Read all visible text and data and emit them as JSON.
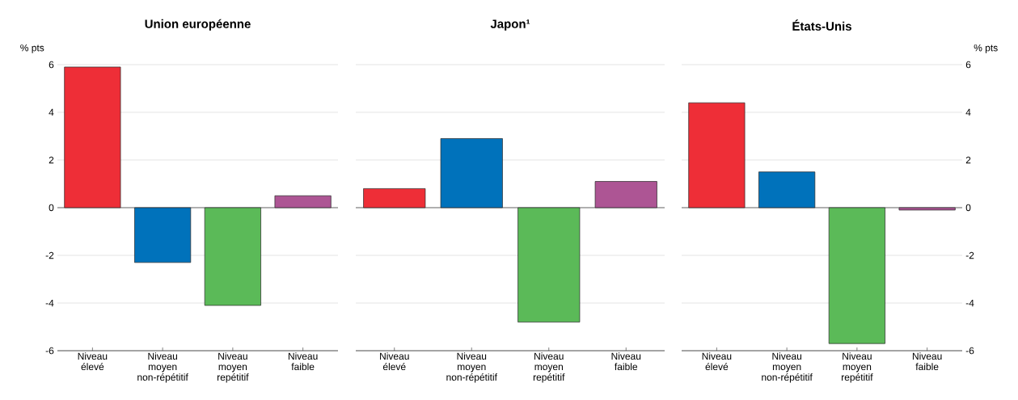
{
  "chart_data": [
    {
      "type": "bar",
      "title": "Union européenne",
      "ylabel": "% pts",
      "categories": [
        "Niveau élevé",
        "Niveau moyen non-répétitif",
        "Niveau moyen repétitif",
        "Niveau faible"
      ],
      "values": [
        5.9,
        -2.3,
        -4.1,
        0.5
      ],
      "colors": [
        "#ee2e37",
        "#0072bb",
        "#5bba58",
        "#ad5594"
      ],
      "ylim": [
        -6,
        6
      ],
      "yticks": [
        -6,
        -4,
        -2,
        0,
        2,
        4,
        6
      ],
      "grid": "y"
    },
    {
      "type": "bar",
      "title": "Japon¹",
      "categories": [
        "Niveau élevé",
        "Niveau moyen non-répétitif",
        "Niveau moyen repétitif",
        "Niveau faible"
      ],
      "values": [
        0.8,
        2.9,
        -4.8,
        1.1
      ],
      "colors": [
        "#ee2e37",
        "#0072bb",
        "#5bba58",
        "#ad5594"
      ],
      "ylim": [
        -6,
        6
      ],
      "yticks": [
        -6,
        -4,
        -2,
        0,
        2,
        4,
        6
      ],
      "grid": "y",
      "tick_labels": "x"
    },
    {
      "type": "bar",
      "title": "États-Unis",
      "y2label": "% pts",
      "categories": [
        "Niveau élevé",
        "Niveau moyen non-répétitif",
        "Niveau moyen repétitif",
        "Niveau faible"
      ],
      "series": [
        {
          "axis": "y2",
          "values": [
            4.4,
            1.5,
            -5.7,
            -0.1
          ],
          "colors": [
            "#ee2e37",
            "#0072bb",
            "#5bba58",
            "#ad5594"
          ]
        }
      ],
      "y2lim": [
        -6,
        6
      ],
      "y2ticks": [
        -6,
        -4,
        -2,
        0,
        2,
        4,
        6
      ],
      "grid": "y"
    }
  ]
}
